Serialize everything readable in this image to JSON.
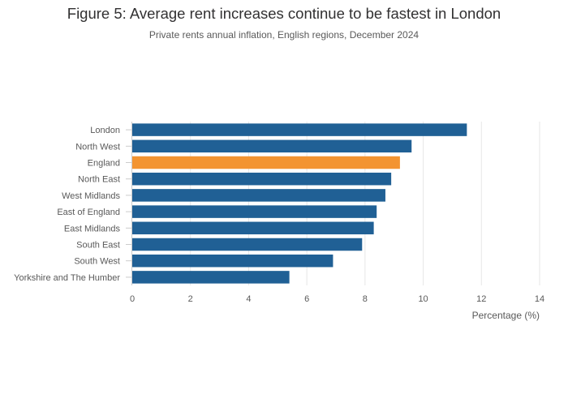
{
  "chart_data": {
    "type": "bar",
    "orientation": "horizontal",
    "title": "Figure 5: Average rent increases continue to be fastest in London",
    "subtitle": "Private rents annual inflation, English regions, December 2024",
    "xlabel": "Percentage (%)",
    "ylabel": "",
    "xlim": [
      0,
      14
    ],
    "x_ticks": [
      0,
      2,
      4,
      6,
      8,
      10,
      12,
      14
    ],
    "grid": true,
    "categories": [
      "London",
      "North West",
      "England",
      "North East",
      "West Midlands",
      "East of England",
      "East Midlands",
      "South East",
      "South West",
      "Yorkshire and The Humber"
    ],
    "values": [
      11.5,
      9.6,
      9.2,
      8.9,
      8.7,
      8.4,
      8.3,
      7.9,
      6.9,
      5.4
    ],
    "highlight_category": "England",
    "colors": {
      "bar": "#206095",
      "highlight": "#F39431",
      "grid": "#e6e6e6",
      "axis": "#cccccc"
    }
  }
}
